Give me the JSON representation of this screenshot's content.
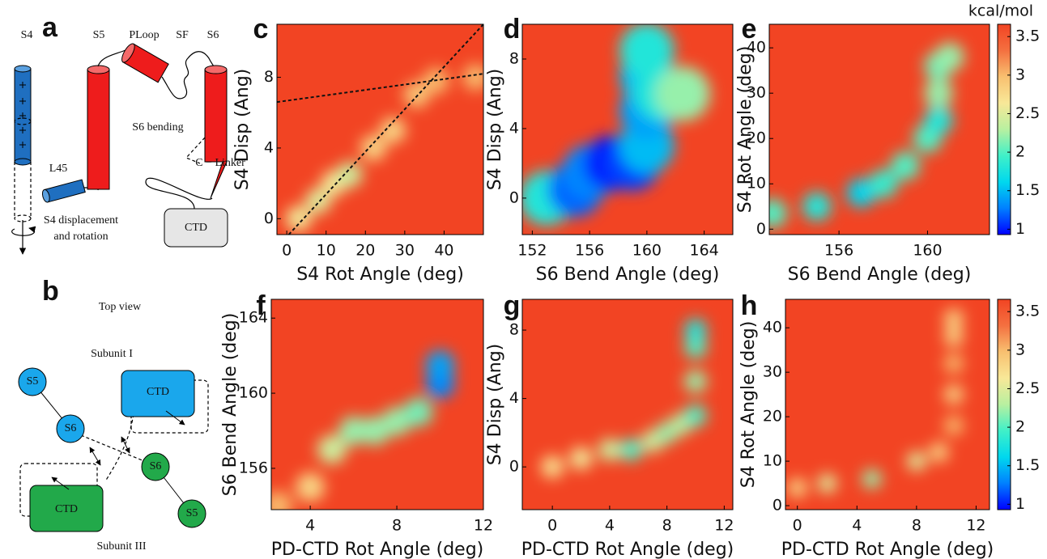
{
  "diagram_a": {
    "letter": "a",
    "labels": [
      "S4",
      "S5",
      "PLoop",
      "SF",
      "S6",
      "S6 bending",
      "L45",
      "C − Linker",
      "S4 displacement",
      "and rotation",
      "CTD"
    ]
  },
  "diagram_b": {
    "letter": "b",
    "title": "Top view",
    "labels": [
      "Subunit I",
      "S5",
      "S6",
      "CTD",
      "S6",
      "S5",
      "CTD",
      "Subunit III"
    ]
  },
  "colorbar": {
    "label": "kcal/mol",
    "lim": [
      0.93,
      3.66
    ],
    "ticks": [
      1,
      1.5,
      2,
      2.5,
      3,
      3.5
    ],
    "colormap": [
      "#0000ff",
      "#0080ff",
      "#00d8ee",
      "#40f0c8",
      "#b8f0a0",
      "#f8e898",
      "#f8c070",
      "#f47040",
      "#f24423"
    ]
  },
  "chart_data": [
    {
      "type": "heatmap",
      "panel": "c",
      "xlabel": "S4 Rot Angle (deg)",
      "ylabel": "S4 Disp (Ang)",
      "xlim": [
        -2.5,
        50
      ],
      "ylim": [
        -0.9,
        11
      ],
      "xticks": [
        0,
        10,
        20,
        30,
        40
      ],
      "yticks": [
        0,
        4,
        8
      ],
      "x": [
        3,
        8,
        12,
        16,
        22,
        27,
        33,
        38,
        48
      ],
      "y": [
        0,
        1,
        2,
        2.5,
        4,
        5,
        7,
        7.8,
        8
      ],
      "values": [
        2.6,
        2.5,
        2.6,
        2.4,
        2.8,
        2.8,
        2.9,
        3,
        3
      ],
      "lines": [
        {
          "x": [
            -2.5,
            50
          ],
          "y": [
            6.6,
            8.2
          ]
        },
        {
          "x": [
            0.5,
            50
          ],
          "y": [
            -0.9,
            11
          ]
        }
      ]
    },
    {
      "type": "heatmap",
      "panel": "d",
      "xlabel": "S6 Bend Angle (deg)",
      "ylabel": "S4 Disp (Ang)",
      "xlim": [
        151.3,
        166
      ],
      "ylim": [
        -2.1,
        10
      ],
      "xticks": [
        152,
        156,
        160,
        164
      ],
      "yticks": [
        0,
        4,
        8
      ],
      "x": [
        153,
        155,
        156,
        157.5,
        159,
        160,
        160,
        160,
        160,
        161,
        162.5
      ],
      "y": [
        0,
        0.5,
        1.5,
        2,
        2,
        3,
        5,
        7,
        8.5,
        6,
        6
      ],
      "values": [
        1.8,
        1.2,
        1.3,
        1,
        1.1,
        1.5,
        1.4,
        1.5,
        1.8,
        1.8,
        2.2
      ]
    },
    {
      "type": "heatmap",
      "panel": "e",
      "xlabel": "S6 Bend Angle (deg)",
      "ylabel": "S4 Rot Angle (deg)",
      "xlim": [
        152.85,
        162.8
      ],
      "ylim": [
        -1.2,
        45.2
      ],
      "xticks": [
        156,
        160
      ],
      "yticks": [
        0,
        10,
        20,
        30,
        40
      ],
      "x": [
        153,
        155,
        157,
        158,
        159,
        160,
        160.5,
        160.5,
        160.5,
        161
      ],
      "y": [
        3.5,
        5,
        8,
        10,
        14,
        20,
        24,
        30,
        36,
        38
      ],
      "values": [
        2,
        1.8,
        1.6,
        1.9,
        2,
        2,
        1.8,
        2.2,
        2.1,
        2.2
      ]
    },
    {
      "type": "heatmap",
      "panel": "f",
      "xlabel": "PD-CTD Rot Angle (deg)",
      "ylabel": "S6 Bend Angle (deg)",
      "xlim": [
        2.2,
        12
      ],
      "ylim": [
        153.8,
        165
      ],
      "xticks": [
        4,
        8,
        12
      ],
      "yticks": [
        156,
        160,
        164
      ],
      "x": [
        2.5,
        4,
        5,
        6,
        7,
        8,
        9,
        10,
        10
      ],
      "y": [
        154,
        155,
        157,
        158,
        158,
        158.5,
        159,
        160.5,
        161.5
      ],
      "values": [
        3,
        2.8,
        2.4,
        2.2,
        2.2,
        2.2,
        2.1,
        1.3,
        1.4
      ]
    },
    {
      "type": "heatmap",
      "panel": "g",
      "xlabel": "PD-CTD Rot Angle (deg)",
      "ylabel": "S4 Disp (Ang)",
      "xlim": [
        -2.1,
        12.6
      ],
      "ylim": [
        -2.5,
        9.8
      ],
      "xticks": [
        0,
        4,
        8,
        12
      ],
      "yticks": [
        0,
        4,
        8
      ],
      "x": [
        0,
        2,
        4,
        5.5,
        7,
        8,
        9,
        10,
        10,
        10,
        10
      ],
      "y": [
        0,
        0.5,
        1,
        1,
        1.5,
        2,
        2.5,
        3,
        5,
        7,
        8
      ],
      "values": [
        2.7,
        2.6,
        2.4,
        2,
        2.4,
        2.2,
        2.3,
        2,
        2.2,
        2,
        1.8
      ]
    },
    {
      "type": "heatmap",
      "panel": "h",
      "xlabel": "PD-CTD Rot Angle (deg)",
      "ylabel": "S4 Rot Angle (deg)",
      "xlim": [
        -0.8,
        12.9
      ],
      "ylim": [
        -0.9,
        46.4
      ],
      "xticks": [
        0,
        4,
        8,
        12
      ],
      "yticks": [
        0,
        10,
        20,
        30,
        40
      ],
      "x": [
        0,
        2,
        5,
        8,
        9.5,
        10.5,
        10.5,
        10.5,
        10.5,
        10.5
      ],
      "y": [
        4,
        5,
        6,
        10,
        12,
        18,
        25,
        32,
        38,
        42
      ],
      "values": [
        2.8,
        2.5,
        2.2,
        2.5,
        2.8,
        3,
        2.8,
        3,
        2.8,
        2.8
      ]
    }
  ]
}
